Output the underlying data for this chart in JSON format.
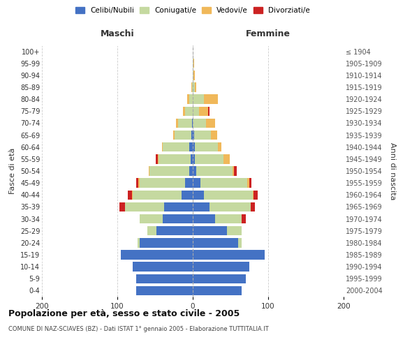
{
  "age_groups": [
    "0-4",
    "5-9",
    "10-14",
    "15-19",
    "20-24",
    "25-29",
    "30-34",
    "35-39",
    "40-44",
    "45-49",
    "50-54",
    "55-59",
    "60-64",
    "65-69",
    "70-74",
    "75-79",
    "80-84",
    "85-89",
    "90-94",
    "95-99",
    "100+"
  ],
  "birth_years": [
    "2000-2004",
    "1995-1999",
    "1990-1994",
    "1985-1989",
    "1980-1984",
    "1975-1979",
    "1970-1974",
    "1965-1969",
    "1960-1964",
    "1955-1959",
    "1950-1954",
    "1945-1949",
    "1940-1944",
    "1935-1939",
    "1930-1934",
    "1925-1929",
    "1920-1924",
    "1915-1919",
    "1910-1914",
    "1905-1909",
    "≤ 1904"
  ],
  "colors": {
    "celibi": "#4472C4",
    "coniugati": "#c5d9a0",
    "vedovi": "#f0b85a",
    "divorziati": "#cc2222"
  },
  "maschi_celibi": [
    75,
    75,
    80,
    95,
    70,
    48,
    40,
    38,
    15,
    10,
    5,
    3,
    5,
    2,
    1,
    0,
    0,
    0,
    0,
    0,
    0
  ],
  "maschi_coniugati": [
    0,
    0,
    0,
    0,
    3,
    12,
    30,
    52,
    65,
    60,
    52,
    42,
    35,
    22,
    18,
    10,
    5,
    1,
    0,
    0,
    0
  ],
  "maschi_vedovi": [
    0,
    0,
    0,
    0,
    0,
    0,
    0,
    0,
    1,
    2,
    1,
    1,
    1,
    2,
    3,
    3,
    2,
    1,
    0,
    0,
    0
  ],
  "maschi_divorziati": [
    0,
    0,
    0,
    0,
    0,
    0,
    0,
    7,
    5,
    3,
    0,
    3,
    0,
    0,
    0,
    0,
    0,
    0,
    0,
    0,
    0
  ],
  "femmine_celibi": [
    65,
    70,
    75,
    95,
    60,
    45,
    30,
    22,
    15,
    10,
    5,
    3,
    3,
    2,
    0,
    0,
    0,
    0,
    0,
    0,
    0
  ],
  "femmine_coniugati": [
    0,
    0,
    0,
    0,
    5,
    20,
    35,
    55,
    65,
    62,
    48,
    38,
    30,
    22,
    18,
    8,
    15,
    3,
    1,
    1,
    0
  ],
  "femmine_vedovi": [
    0,
    0,
    0,
    0,
    0,
    0,
    0,
    0,
    1,
    3,
    2,
    8,
    5,
    8,
    12,
    12,
    18,
    2,
    2,
    1,
    0
  ],
  "femmine_divorziati": [
    0,
    0,
    0,
    0,
    0,
    0,
    5,
    5,
    5,
    3,
    3,
    0,
    0,
    0,
    0,
    2,
    0,
    0,
    0,
    0,
    0
  ],
  "title": "Popolazione per età, sesso e stato civile - 2005",
  "subtitle": "COMUNE DI NAZ-SCIAVES (BZ) - Dati ISTAT 1° gennaio 2005 - Elaborazione TUTTITALIA.IT",
  "xlabel_left": "Maschi",
  "xlabel_right": "Femmine",
  "ylabel_left": "Fasce di età",
  "ylabel_right": "Anni di nascita",
  "xlim": 200,
  "background_color": "#ffffff",
  "grid_color": "#cccccc"
}
